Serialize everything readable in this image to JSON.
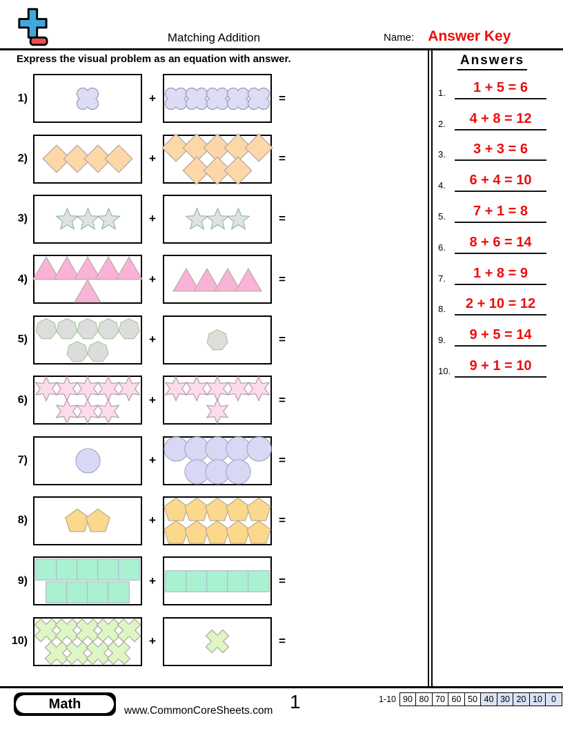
{
  "header": {
    "title": "Matching Addition",
    "name_label": "Name:",
    "answer_key": "Answer Key",
    "instruction": "Express the visual problem as an equation with answer."
  },
  "symbols": {
    "plus": "+",
    "equals": "="
  },
  "colors": {
    "answer_red": "#ee0c0c",
    "logo_blue": "#3fa9dc",
    "logo_red": "#f04d4d",
    "score_highlight": "#d9e3f5"
  },
  "problems": [
    {
      "label": "1)",
      "shape": "quatrefoil",
      "fill": "#dcdcf5",
      "stroke": "#9b94b8",
      "left_rows": [
        1
      ],
      "right_rows": [
        5
      ]
    },
    {
      "label": "2)",
      "shape": "diamond",
      "fill": "#fcd8a8",
      "stroke": "#b9a8a3",
      "left_rows": [
        4
      ],
      "right_rows": [
        5,
        3
      ]
    },
    {
      "label": "3)",
      "shape": "star5",
      "fill": "#dee4e4",
      "stroke": "#90b0ac",
      "left_rows": [
        3
      ],
      "right_rows": [
        3
      ]
    },
    {
      "label": "4)",
      "shape": "triangle",
      "fill": "#f9b3d6",
      "stroke": "#bdada7",
      "left_rows": [
        5,
        1
      ],
      "right_rows": [
        4
      ]
    },
    {
      "label": "5)",
      "shape": "heptagon",
      "fill": "#dddddd",
      "stroke": "#a5c593",
      "left_rows": [
        5,
        2
      ],
      "right_rows": [
        1
      ]
    },
    {
      "label": "6)",
      "shape": "star6",
      "fill": "#fbdce8",
      "stroke": "#b39cb0",
      "left_rows": [
        5,
        3
      ],
      "right_rows": [
        5,
        1
      ]
    },
    {
      "label": "7)",
      "shape": "circle",
      "fill": "#d8d8f4",
      "stroke": "#a3a3c6",
      "left_rows": [
        1
      ],
      "right_rows": [
        5,
        3
      ]
    },
    {
      "label": "8)",
      "shape": "pentagon",
      "fill": "#fbd88b",
      "stroke": "#b3a694",
      "left_rows": [
        2
      ],
      "right_rows": [
        5,
        5
      ]
    },
    {
      "label": "9)",
      "shape": "square",
      "fill": "#a9f1d0",
      "stroke": "#b4b2cc",
      "left_rows": [
        5,
        4
      ],
      "right_rows": [
        5
      ]
    },
    {
      "label": "10)",
      "shape": "cross",
      "fill": "#def6c3",
      "stroke": "#a9ab9f",
      "left_rows": [
        5,
        4
      ],
      "right_rows": [
        1
      ]
    }
  ],
  "answers_section": {
    "heading": "Answers",
    "items": [
      {
        "num": "1.",
        "equation": "1 + 5 = 6"
      },
      {
        "num": "2.",
        "equation": "4 + 8 = 12"
      },
      {
        "num": "3.",
        "equation": "3 + 3 = 6"
      },
      {
        "num": "4.",
        "equation": "6 + 4 = 10"
      },
      {
        "num": "5.",
        "equation": "7 + 1 = 8"
      },
      {
        "num": "6.",
        "equation": "8 + 6 = 14"
      },
      {
        "num": "7.",
        "equation": "1 + 8 = 9"
      },
      {
        "num": "8.",
        "equation": "2 + 10 = 12"
      },
      {
        "num": "9.",
        "equation": "9 + 5 = 14"
      },
      {
        "num": "10.",
        "equation": "9 + 1 = 10"
      }
    ]
  },
  "footer": {
    "subject": "Math",
    "website": "www.CommonCoreSheets.com",
    "page": "1",
    "range_label": "1-10",
    "scores": [
      "90",
      "80",
      "70",
      "60",
      "50",
      "40",
      "30",
      "20",
      "10",
      "0"
    ],
    "highlight_from": 5
  }
}
